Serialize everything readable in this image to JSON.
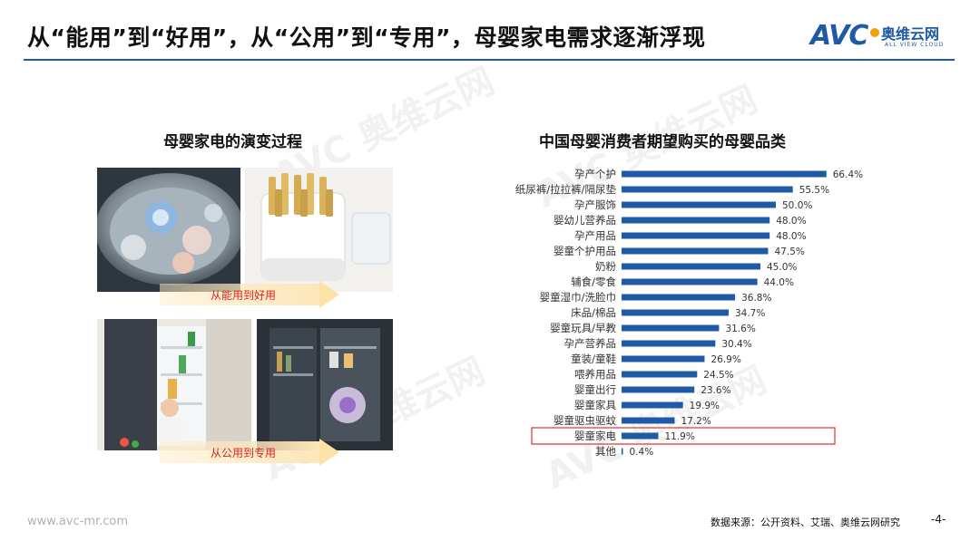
{
  "header": {
    "title": "从“能用”到“好用”，从“公用”到“专用”，母婴家电需求逐渐浮现",
    "logo_text": "AVC",
    "logo_cn": "奥维云网",
    "logo_en": "ALL VIEW CLOUD"
  },
  "left_panel": {
    "title": "母婴家电的演变过程",
    "arrow1_label": "从能用到好用",
    "arrow2_label": "从公用到专用"
  },
  "colors": {
    "bar": "#1f5aa6",
    "highlight": "#e03030",
    "arrow_text": "#e02020"
  },
  "chart_data": {
    "type": "bar",
    "orientation": "horizontal",
    "title": "中国母婴消费者期望购买的母婴品类",
    "categories": [
      "孕产个护",
      "纸尿裤/拉拉裤/隔尿垫",
      "孕产服饰",
      "婴幼儿营养品",
      "孕产用品",
      "婴童个护用品",
      "奶粉",
      "辅食/零食",
      "婴童湿巾/洗脸巾",
      "床品/棉品",
      "婴童玩具/早教",
      "孕产营养品",
      "童装/童鞋",
      "喂养用品",
      "婴童出行",
      "婴童家具",
      "婴童驱虫驱蚊",
      "婴童家电",
      "其他"
    ],
    "values": [
      66.4,
      55.5,
      50.0,
      48.0,
      48.0,
      47.5,
      45.0,
      44.0,
      36.8,
      34.7,
      31.6,
      30.4,
      26.9,
      24.5,
      23.6,
      19.9,
      17.2,
      11.9,
      0.4
    ],
    "labels": [
      "66.4%",
      "55.5%",
      "50.0%",
      "48.0%",
      "48.0%",
      "47.5%",
      "45.0%",
      "44.0%",
      "36.8%",
      "34.7%",
      "31.6%",
      "30.4%",
      "26.9%",
      "24.5%",
      "23.6%",
      "19.9%",
      "17.2%",
      "11.9%",
      "0.4%"
    ],
    "highlight": "婴童家电",
    "xlim": [
      0,
      70
    ]
  },
  "footer": {
    "url": "www.avc-mr.com",
    "source": "数据来源：公开资料、艾瑞、奥维云网研究",
    "page": "-4-"
  }
}
